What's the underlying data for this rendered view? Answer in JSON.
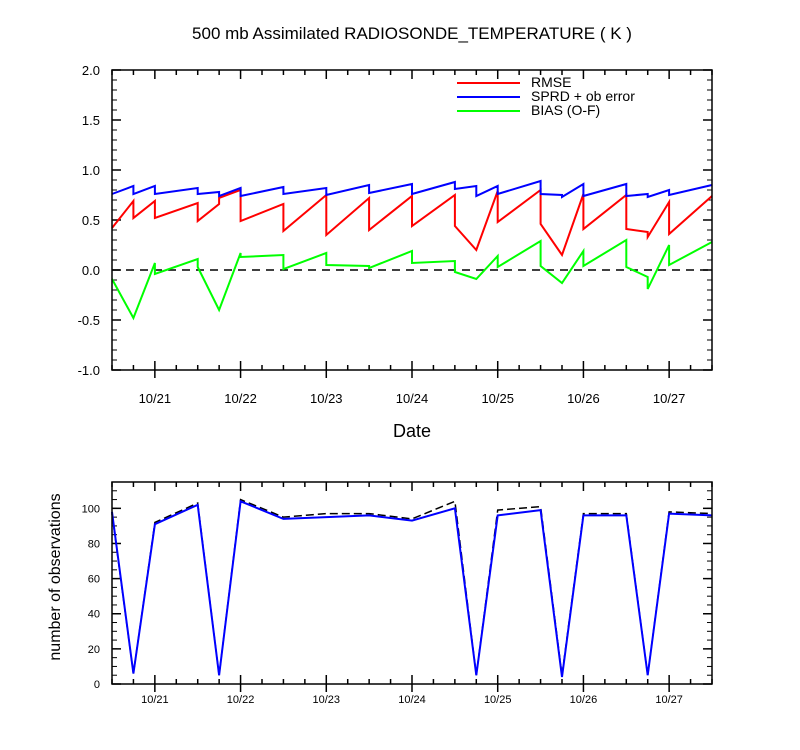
{
  "chart_data": [
    {
      "type": "line",
      "title": "500 mb Assimilated RADIOSONDE_TEMPERATURE ( K )",
      "xlabel": "Date",
      "ylabel": "",
      "ylim": [
        -1.0,
        2.0
      ],
      "yticks": [
        "2.0",
        "1.5",
        "1.0",
        "0.5",
        "0.0",
        "-0.5",
        "-1.0"
      ],
      "xlim": [
        20.5,
        27.5
      ],
      "xticks": [
        {
          "x": 21,
          "label": "10/21"
        },
        {
          "x": 22,
          "label": "10/22"
        },
        {
          "x": 23,
          "label": "10/23"
        },
        {
          "x": 24,
          "label": "10/24"
        },
        {
          "x": 25,
          "label": "10/25"
        },
        {
          "x": 26,
          "label": "10/26"
        },
        {
          "x": 27,
          "label": "10/27"
        }
      ],
      "zero_line": "dashed",
      "legend_position": "top-right",
      "series": [
        {
          "name": "RMSE",
          "color": "#ff0000",
          "points": [
            [
              20.5,
              0.42
            ],
            [
              20.75,
              0.69
            ],
            [
              20.75,
              0.52
            ],
            [
              21.0,
              0.69
            ],
            [
              21.0,
              0.52
            ],
            [
              21.5,
              0.67
            ],
            [
              21.5,
              0.49
            ],
            [
              21.75,
              0.66
            ],
            [
              21.75,
              0.72
            ],
            [
              22.0,
              0.8
            ],
            [
              22.0,
              0.49
            ],
            [
              22.5,
              0.66
            ],
            [
              22.5,
              0.39
            ],
            [
              23.0,
              0.75
            ],
            [
              23.0,
              0.35
            ],
            [
              23.5,
              0.72
            ],
            [
              23.5,
              0.4
            ],
            [
              24.0,
              0.74
            ],
            [
              24.0,
              0.44
            ],
            [
              24.5,
              0.75
            ],
            [
              24.5,
              0.44
            ],
            [
              24.75,
              0.2
            ],
            [
              25.0,
              0.79
            ],
            [
              25.0,
              0.48
            ],
            [
              25.5,
              0.8
            ],
            [
              25.5,
              0.46
            ],
            [
              25.75,
              0.15
            ],
            [
              26.0,
              0.76
            ],
            [
              26.0,
              0.41
            ],
            [
              26.5,
              0.75
            ],
            [
              26.5,
              0.41
            ],
            [
              26.75,
              0.38
            ],
            [
              26.75,
              0.33
            ],
            [
              27.0,
              0.68
            ],
            [
              27.0,
              0.36
            ],
            [
              27.5,
              0.74
            ]
          ]
        },
        {
          "name": "SPRD + ob error",
          "color": "#0000ff",
          "points": [
            [
              20.5,
              0.76
            ],
            [
              20.75,
              0.84
            ],
            [
              20.75,
              0.76
            ],
            [
              21.0,
              0.84
            ],
            [
              21.0,
              0.76
            ],
            [
              21.5,
              0.82
            ],
            [
              21.5,
              0.76
            ],
            [
              21.75,
              0.78
            ],
            [
              21.75,
              0.74
            ],
            [
              22.0,
              0.82
            ],
            [
              22.0,
              0.74
            ],
            [
              22.5,
              0.83
            ],
            [
              22.5,
              0.76
            ],
            [
              23.0,
              0.82
            ],
            [
              23.0,
              0.75
            ],
            [
              23.5,
              0.85
            ],
            [
              23.5,
              0.77
            ],
            [
              24.0,
              0.86
            ],
            [
              24.0,
              0.76
            ],
            [
              24.5,
              0.88
            ],
            [
              24.5,
              0.81
            ],
            [
              24.75,
              0.84
            ],
            [
              24.75,
              0.74
            ],
            [
              25.0,
              0.84
            ],
            [
              25.0,
              0.76
            ],
            [
              25.5,
              0.89
            ],
            [
              25.5,
              0.76
            ],
            [
              25.75,
              0.75
            ],
            [
              25.75,
              0.73
            ],
            [
              26.0,
              0.86
            ],
            [
              26.0,
              0.74
            ],
            [
              26.5,
              0.86
            ],
            [
              26.5,
              0.74
            ],
            [
              26.75,
              0.76
            ],
            [
              26.75,
              0.73
            ],
            [
              27.0,
              0.8
            ],
            [
              27.0,
              0.75
            ],
            [
              27.5,
              0.85
            ]
          ]
        },
        {
          "name": "BIAS (O-F)",
          "color": "#00ff00",
          "points": [
            [
              20.5,
              -0.09
            ],
            [
              20.75,
              -0.48
            ],
            [
              21.0,
              0.07
            ],
            [
              21.0,
              -0.04
            ],
            [
              21.5,
              0.11
            ],
            [
              21.5,
              0.03
            ],
            [
              21.75,
              -0.4
            ],
            [
              22.0,
              0.17
            ],
            [
              22.0,
              0.13
            ],
            [
              22.5,
              0.15
            ],
            [
              22.5,
              0.01
            ],
            [
              23.0,
              0.17
            ],
            [
              23.0,
              0.05
            ],
            [
              23.5,
              0.04
            ],
            [
              23.5,
              0.02
            ],
            [
              24.0,
              0.19
            ],
            [
              24.0,
              0.07
            ],
            [
              24.5,
              0.09
            ],
            [
              24.5,
              -0.02
            ],
            [
              24.75,
              -0.09
            ],
            [
              25.0,
              0.14
            ],
            [
              25.0,
              0.03
            ],
            [
              25.5,
              0.29
            ],
            [
              25.5,
              0.04
            ],
            [
              25.75,
              -0.13
            ],
            [
              26.0,
              0.19
            ],
            [
              26.0,
              0.04
            ],
            [
              26.5,
              0.3
            ],
            [
              26.5,
              0.03
            ],
            [
              26.75,
              -0.07
            ],
            [
              26.75,
              -0.19
            ],
            [
              27.0,
              0.25
            ],
            [
              27.0,
              0.05
            ],
            [
              27.5,
              0.28
            ]
          ]
        }
      ]
    },
    {
      "type": "line",
      "title": "",
      "xlabel": "",
      "ylabel": "number of observations",
      "ylim": [
        0,
        115
      ],
      "yticks": [
        "100",
        "80",
        "60",
        "40",
        "20",
        "0"
      ],
      "xlim": [
        20.5,
        27.5
      ],
      "xticks": [
        {
          "x": 21,
          "label": "10/21"
        },
        {
          "x": 22,
          "label": "10/22"
        },
        {
          "x": 23,
          "label": "10/23"
        },
        {
          "x": 24,
          "label": "10/24"
        },
        {
          "x": 25,
          "label": "10/25"
        },
        {
          "x": 26,
          "label": "10/26"
        },
        {
          "x": 27,
          "label": "10/27"
        }
      ],
      "series": [
        {
          "color": "#000000",
          "style": "dashed",
          "points": [
            [
              20.5,
              97
            ],
            [
              20.75,
              6
            ],
            [
              21.0,
              92
            ],
            [
              21.5,
              103
            ],
            [
              21.75,
              5
            ],
            [
              22.0,
              105
            ],
            [
              22.5,
              95
            ],
            [
              23.0,
              97
            ],
            [
              23.5,
              97
            ],
            [
              24.0,
              94
            ],
            [
              24.5,
              104
            ],
            [
              24.75,
              5
            ],
            [
              25.0,
              99
            ],
            [
              25.5,
              101
            ],
            [
              25.75,
              5
            ],
            [
              26.0,
              97
            ],
            [
              26.5,
              97
            ],
            [
              26.75,
              5
            ],
            [
              27.0,
              98
            ],
            [
              27.5,
              97
            ]
          ]
        },
        {
          "color": "#0000ff",
          "style": "solid",
          "points": [
            [
              20.5,
              98
            ],
            [
              20.75,
              6
            ],
            [
              21.0,
              91
            ],
            [
              21.5,
              102
            ],
            [
              21.75,
              5
            ],
            [
              22.0,
              104
            ],
            [
              22.5,
              94
            ],
            [
              23.0,
              95
            ],
            [
              23.5,
              96
            ],
            [
              24.0,
              93
            ],
            [
              24.5,
              100
            ],
            [
              24.75,
              5
            ],
            [
              25.0,
              96
            ],
            [
              25.5,
              99
            ],
            [
              25.75,
              4
            ],
            [
              26.0,
              96
            ],
            [
              26.5,
              96
            ],
            [
              26.75,
              5
            ],
            [
              27.0,
              97
            ],
            [
              27.5,
              96
            ]
          ]
        }
      ]
    }
  ]
}
